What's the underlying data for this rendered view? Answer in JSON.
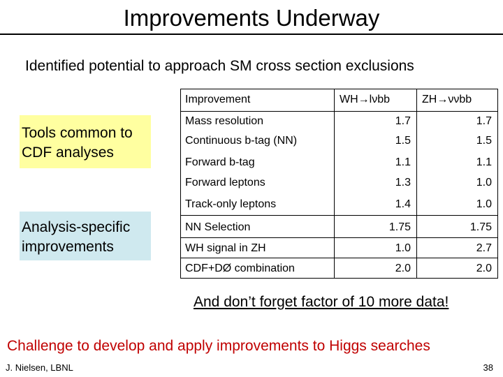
{
  "slide": {
    "title": "Improvements Underway",
    "subtitle": "Identified potential to approach SM cross section exclusions",
    "box_tools": "Tools common to CDF analyses",
    "box_analysis": "Analysis-specific improvements",
    "note": "And don’t forget factor of 10 more data!",
    "challenge": "Challenge to develop and apply improvements to Higgs searches",
    "author": "J. Nielsen, LBNL",
    "page_number": "38"
  },
  "table": {
    "headers": [
      "Improvement",
      "WH→lνbb",
      "ZH→ννbb"
    ],
    "rows": [
      {
        "improvement": "Mass resolution",
        "wh": "1.7",
        "zh": "1.7"
      },
      {
        "improvement": "Continuous b-tag (NN)",
        "wh": "1.5",
        "zh": "1.5"
      },
      {
        "improvement": "Forward b-tag",
        "wh": "1.1",
        "zh": "1.1"
      },
      {
        "improvement": "Forward leptons",
        "wh": "1.3",
        "zh": "1.0"
      },
      {
        "improvement": "Track-only leptons",
        "wh": "1.4",
        "zh": "1.0"
      },
      {
        "improvement": "NN Selection",
        "wh": "1.75",
        "zh": "1.75"
      },
      {
        "improvement": "WH signal in ZH",
        "wh": "1.0",
        "zh": "2.7"
      },
      {
        "improvement": "CDF+DØ combination",
        "wh": "2.0",
        "zh": "2.0"
      }
    ]
  }
}
